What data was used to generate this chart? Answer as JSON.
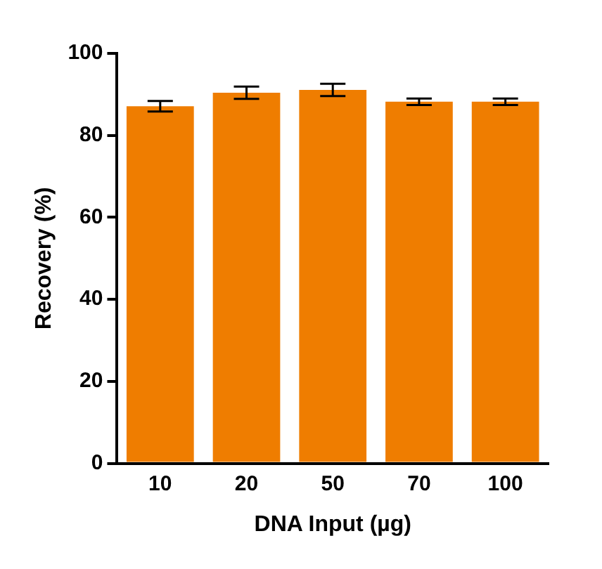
{
  "chart_data": {
    "type": "bar",
    "xlabel": "DNA Input (µg)",
    "ylabel": "Recovery (%)",
    "categories": [
      "10",
      "20",
      "50",
      "70",
      "100"
    ],
    "values": [
      87.1,
      90.4,
      91.1,
      88.2,
      88.2
    ],
    "errors": [
      1.3,
      1.5,
      1.5,
      0.8,
      0.8
    ],
    "color": "#ef7d00",
    "ylim": [
      0,
      100
    ],
    "yticks": [
      0,
      20,
      40,
      60,
      80,
      100
    ],
    "grid": false,
    "legend": false
  }
}
